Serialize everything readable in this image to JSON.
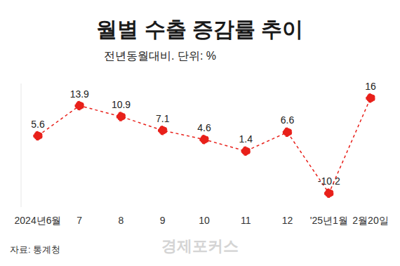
{
  "chart_data": {
    "type": "line",
    "title": "월별 수출 증감률 추이",
    "subtitle": "전년동월대비. 단위: %",
    "source": "자료: 통계청",
    "watermark": "경제포커스",
    "categories": [
      "2024년6월",
      "7",
      "8",
      "9",
      "10",
      "11",
      "12",
      "'25년1월",
      "2월20일"
    ],
    "values": [
      5.6,
      13.9,
      10.9,
      7.1,
      4.6,
      1.4,
      6.6,
      -10.2,
      16.0
    ],
    "color": "#e8201a",
    "ylim": [
      -14,
      20
    ],
    "grid": false,
    "tick_labels": "x",
    "data_labels": true,
    "line_style": "dashed",
    "marker": "circle"
  }
}
